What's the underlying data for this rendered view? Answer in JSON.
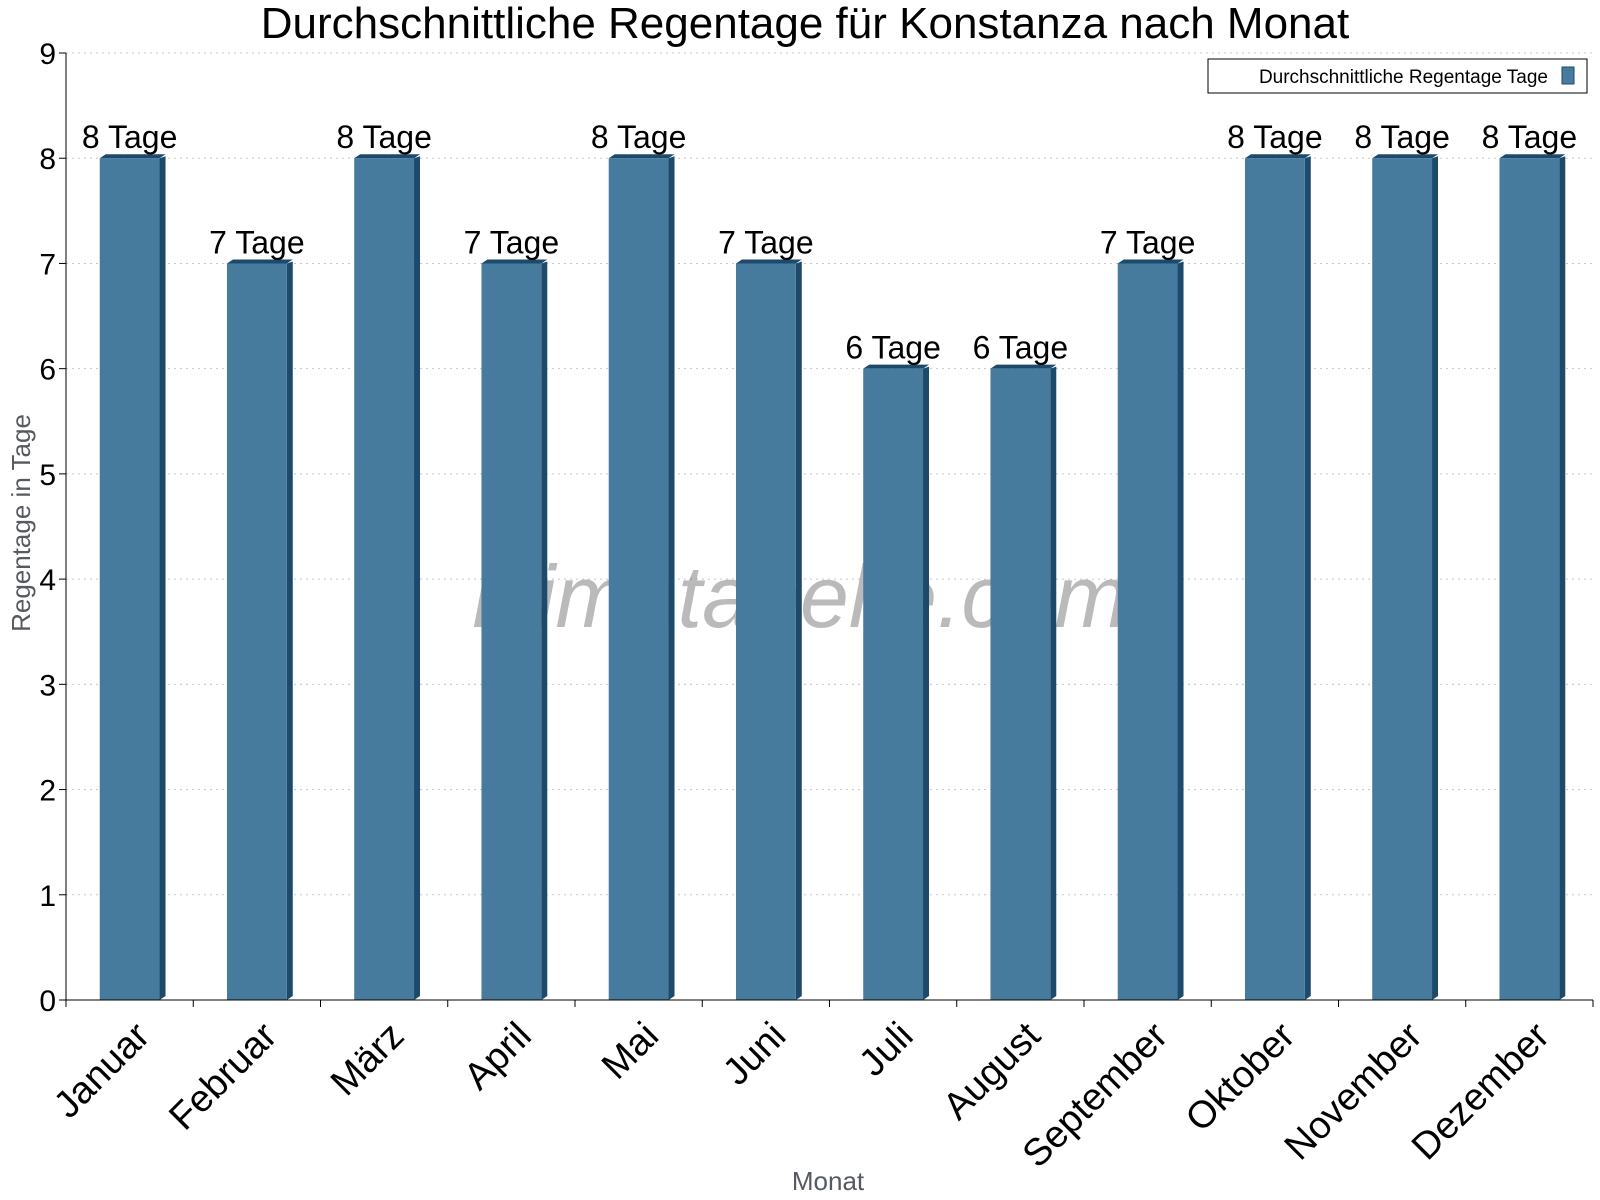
{
  "chart_data": {
    "type": "bar",
    "title": "Durchschnittliche Regentage für Konstanza nach Monat",
    "xlabel": "Monat",
    "ylabel": "Regentage in Tage",
    "ylim": [
      0,
      9
    ],
    "yticks": [
      0,
      1,
      2,
      3,
      4,
      5,
      6,
      7,
      8,
      9
    ],
    "grid": true,
    "legend_position": "top-right",
    "categories": [
      "Januar",
      "Februar",
      "März",
      "April",
      "Mai",
      "Juni",
      "Juli",
      "August",
      "September",
      "Oktober",
      "November",
      "Dezember"
    ],
    "series": [
      {
        "name": "Durchschnittliche Regentage Tage",
        "values": [
          8,
          7,
          8,
          7,
          8,
          7,
          6,
          6,
          7,
          8,
          8,
          8
        ],
        "labels": [
          "8 Tage",
          "7 Tage",
          "8 Tage",
          "7 Tage",
          "8 Tage",
          "7 Tage",
          "6 Tage",
          "6 Tage",
          "7 Tage",
          "8 Tage",
          "8 Tage",
          "8 Tage"
        ],
        "color": "#467b9e",
        "shade_color": "#1d4a6b"
      }
    ]
  },
  "watermark": "klimatabelle.com"
}
